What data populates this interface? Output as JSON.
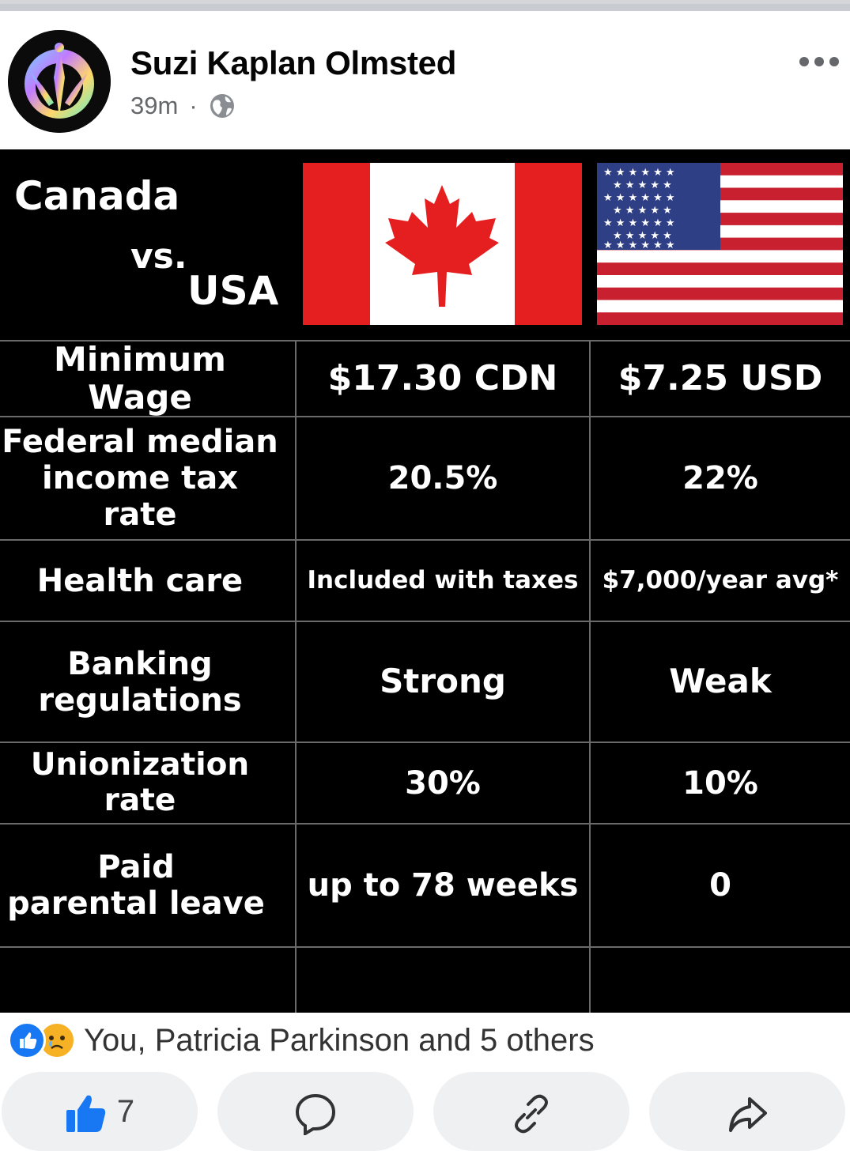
{
  "post": {
    "author": "Suzi Kaplan Olmsted",
    "time": "39m",
    "separator": "·",
    "privacy_icon": "globe-icon",
    "more_icon": "more-dots-icon"
  },
  "graphic": {
    "title_line1": "Canada",
    "title_line2": "vs.",
    "title_line3": "USA",
    "flags": [
      "canada-flag",
      "usa-flag"
    ],
    "rows": [
      {
        "label": "Minimum Wage",
        "canada": "$17.30 CDN",
        "usa": "$7.25 USD"
      },
      {
        "label_line1": "Federal median",
        "label_line2": "income tax rate",
        "canada": "20.5%",
        "usa": "22%"
      },
      {
        "label": "Health care",
        "canada": "Included with taxes",
        "usa": "$7,000/year avg*"
      },
      {
        "label_line1": "Banking",
        "label_line2": "regulations",
        "canada": "Strong",
        "usa": "Weak"
      },
      {
        "label": "Unionization rate",
        "canada": "30%",
        "usa": "10%"
      },
      {
        "label_line1": "Paid",
        "label_line2": "parental leave",
        "canada": "up to 78 weeks",
        "usa": "0"
      }
    ],
    "colors": {
      "canada_red": "#e51f1f",
      "usa_red": "#c8202f",
      "usa_blue": "#2e3f86",
      "background": "#000000"
    }
  },
  "reactions": {
    "icons": [
      "like-icon",
      "sad-icon"
    ],
    "summary": "You, Patricia Parkinson and 5 others"
  },
  "actions": {
    "like_count": "7",
    "like_icon": "thumbs-up-icon",
    "comment_icon": "comment-icon",
    "link_icon": "link-icon",
    "share_icon": "share-icon",
    "like_color": "#1877f2"
  }
}
